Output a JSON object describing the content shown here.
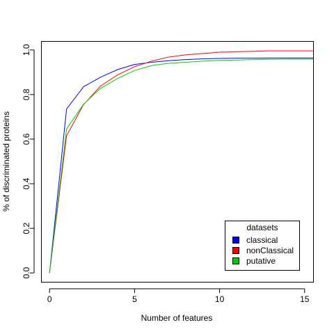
{
  "chart_data": {
    "type": "line",
    "xlabel": "Number of features",
    "ylabel": "% of discriminated proteins",
    "xlim": [
      -0.5,
      15.5
    ],
    "ylim": [
      -0.04,
      1.04
    ],
    "xticks": [
      0,
      5,
      10,
      15
    ],
    "yticks": [
      0.0,
      0.2,
      0.4,
      0.6,
      0.8,
      1.0
    ],
    "ytick_labels": [
      "0.0",
      "0.2",
      "0.4",
      "0.6",
      "0.8",
      "1.0"
    ],
    "grid": false,
    "legend": {
      "title": "datasets",
      "placement": "bottom-right"
    },
    "x": [
      0,
      1,
      2,
      3,
      4,
      5,
      6,
      7,
      8,
      9,
      10,
      11,
      12,
      13,
      14,
      15,
      16
    ],
    "series": [
      {
        "name": "classical",
        "color": "#0000ff",
        "values": [
          0.0,
          0.735,
          0.835,
          0.878,
          0.912,
          0.935,
          0.945,
          0.952,
          0.957,
          0.96,
          0.962,
          0.963,
          0.963,
          0.964,
          0.964,
          0.964,
          0.964
        ]
      },
      {
        "name": "nonClassical",
        "color": "#ff0000",
        "values": [
          0.0,
          0.615,
          0.755,
          0.838,
          0.888,
          0.925,
          0.95,
          0.968,
          0.978,
          0.984,
          0.99,
          0.992,
          0.994,
          0.996,
          0.996,
          0.996,
          0.996
        ]
      },
      {
        "name": "putative",
        "color": "#00cd00",
        "values": [
          0.0,
          0.645,
          0.757,
          0.828,
          0.872,
          0.908,
          0.93,
          0.94,
          0.945,
          0.95,
          0.953,
          0.955,
          0.957,
          0.958,
          0.959,
          0.959,
          0.959
        ]
      }
    ]
  }
}
